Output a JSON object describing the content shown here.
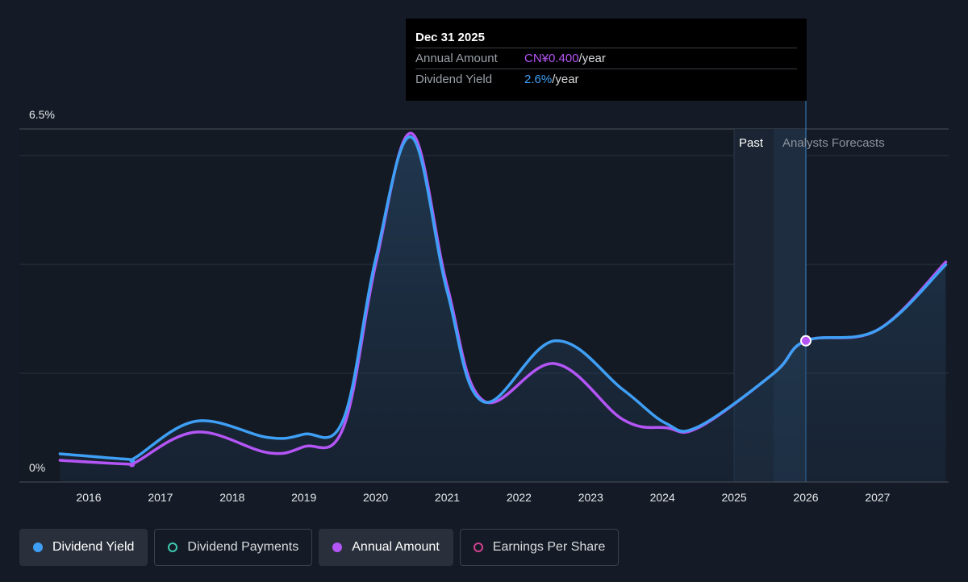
{
  "tooltip": {
    "date": "Dec 31 2025",
    "rows": [
      {
        "key": "Annual Amount",
        "value": "CN¥0.400",
        "unit": "/year"
      },
      {
        "key": "Dividend Yield",
        "value": "2.6%",
        "unit": "/year"
      }
    ]
  },
  "legend": [
    {
      "label": "Dividend Yield",
      "color": "#3e9ff5",
      "style": "filled",
      "active": true
    },
    {
      "label": "Dividend Payments",
      "color": "#3fc9b0",
      "style": "outline",
      "active": false
    },
    {
      "label": "Annual Amount",
      "color": "#b455f5",
      "style": "filled",
      "active": true
    },
    {
      "label": "Earnings Per Share",
      "color": "#d1408f",
      "style": "outline",
      "active": false
    }
  ],
  "regions": {
    "past": "Past",
    "forecast": "Analysts Forecasts"
  },
  "chart_data": {
    "type": "line",
    "ylim": [
      0,
      6.5
    ],
    "y_tick_labels": [
      "0%",
      "6.5%"
    ],
    "x_ticks": [
      2016,
      2017,
      2018,
      2019,
      2020,
      2021,
      2022,
      2023,
      2024,
      2025,
      2026,
      2027
    ],
    "xlim": [
      2015.55,
      2027.95
    ],
    "past_region": [
      2025.0,
      2025.55
    ],
    "forecast_region": [
      2025.55,
      2026.0
    ],
    "highlight": {
      "x": 2026.0,
      "y": 2.6
    },
    "series": [
      {
        "name": "Dividend Yield",
        "color": "#3e9ff5",
        "points": [
          [
            2015.6,
            0.52
          ],
          [
            2016.55,
            0.42
          ],
          [
            2016.65,
            0.45
          ],
          [
            2017.5,
            1.12
          ],
          [
            2018.5,
            0.82
          ],
          [
            2019.0,
            0.88
          ],
          [
            2019.55,
            1.15
          ],
          [
            2020.0,
            4.1
          ],
          [
            2020.5,
            6.35
          ],
          [
            2021.0,
            3.5
          ],
          [
            2021.5,
            1.48
          ],
          [
            2022.5,
            2.6
          ],
          [
            2023.45,
            1.7
          ],
          [
            2024.05,
            1.08
          ],
          [
            2024.5,
            1.02
          ],
          [
            2025.55,
            2.0
          ],
          [
            2026.0,
            2.6
          ],
          [
            2027.0,
            2.8
          ],
          [
            2027.95,
            4.0
          ]
        ]
      },
      {
        "name": "Annual Amount",
        "color": "#b455f5",
        "points": [
          [
            2015.6,
            0.4
          ],
          [
            2016.55,
            0.33
          ],
          [
            2016.65,
            0.36
          ],
          [
            2017.5,
            0.92
          ],
          [
            2018.5,
            0.54
          ],
          [
            2019.0,
            0.65
          ],
          [
            2019.55,
            1.0
          ],
          [
            2020.0,
            4.0
          ],
          [
            2020.5,
            6.42
          ],
          [
            2021.0,
            3.6
          ],
          [
            2021.5,
            1.5
          ],
          [
            2022.5,
            2.18
          ],
          [
            2023.45,
            1.15
          ],
          [
            2024.05,
            1.0
          ],
          [
            2024.5,
            1.0
          ],
          [
            2025.55,
            2.0
          ],
          [
            2026.0,
            2.6
          ],
          [
            2027.0,
            2.8
          ],
          [
            2027.95,
            4.05
          ]
        ]
      }
    ]
  }
}
